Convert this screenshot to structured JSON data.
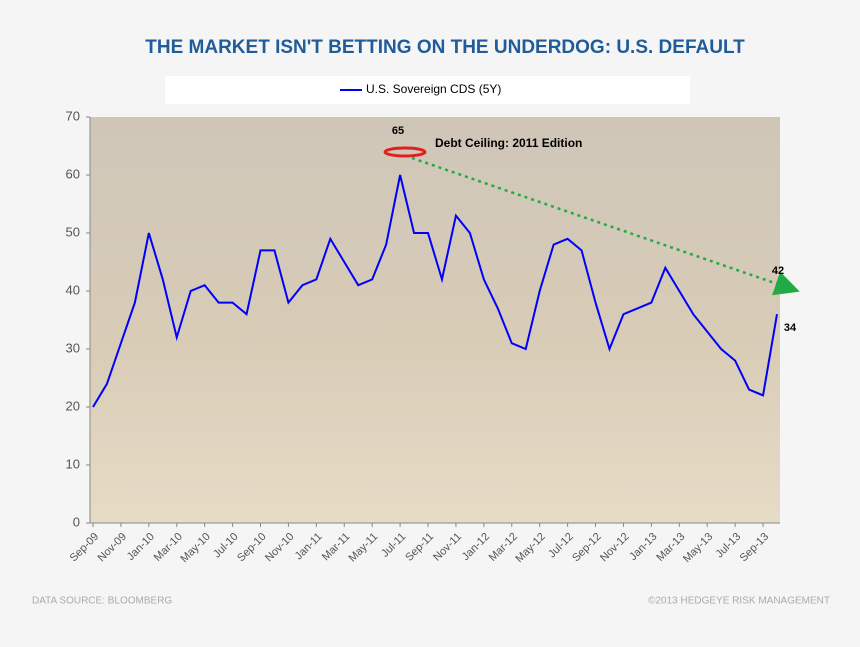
{
  "chart_data": {
    "type": "line",
    "title": "THE MARKET ISN'T BETTING ON THE UNDERDOG: U.S. DEFAULT",
    "categories": [
      "Sep-09",
      null,
      "Nov-09",
      null,
      "Jan-10",
      null,
      "Mar-10",
      null,
      "May-10",
      null,
      "Jul-10",
      null,
      "Sep-10",
      null,
      "Nov-10",
      null,
      "Jan-11",
      null,
      "Mar-11",
      null,
      "May-11",
      null,
      "Jul-11",
      null,
      "Sep-11",
      null,
      "Nov-11",
      null,
      "Jan-12",
      null,
      "Mar-12",
      null,
      "May-12",
      null,
      "Jul-12",
      null,
      "Sep-12",
      null,
      "Nov-12",
      null,
      "Jan-13",
      null,
      "Mar-13",
      null,
      "May-13",
      null,
      "Jul-13",
      null,
      "Sep-13",
      null
    ],
    "series": [
      {
        "name": "U.S. Sovereign CDS (5Y)",
        "color": "#0000ff",
        "values": [
          20,
          24,
          31,
          38,
          50,
          42,
          32,
          40,
          41,
          38,
          38,
          36,
          47,
          47,
          38,
          41,
          42,
          49,
          45,
          41,
          42,
          48,
          60,
          50,
          50,
          42,
          53,
          50,
          42,
          37,
          31,
          30,
          40,
          48,
          49,
          47,
          38,
          30,
          36,
          37,
          38,
          44,
          40,
          36,
          33,
          30,
          28,
          23,
          22,
          36
        ]
      }
    ],
    "ylim": [
      0,
      70
    ],
    "yticks": [
      0,
      10,
      20,
      30,
      40,
      50,
      60,
      70
    ],
    "annotations": [
      "65",
      "Debt Ceiling: 2011 Edition",
      "42",
      "34"
    ],
    "source": "DATA SOURCE: BLOOMBERG",
    "credit": "©2013 HEDGEYE RISK MANAGEMENT"
  }
}
